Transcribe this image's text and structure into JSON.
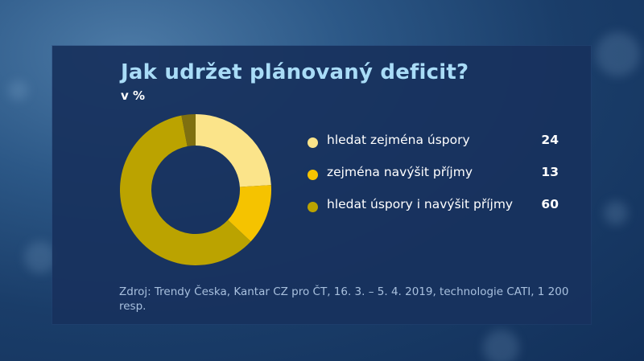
{
  "chart_data": {
    "type": "pie",
    "title": "Jak udržet plánovaný deficit?",
    "subtitle": "v %",
    "series": [
      {
        "name": "hledat zejména úspory",
        "value": 24,
        "value_label": "24",
        "color": "#fbe48a"
      },
      {
        "name": "zejména navýšit příjmy",
        "value": 13,
        "value_label": "13",
        "color": "#f5c300"
      },
      {
        "name": "hledat úspory i navýšit příjmy",
        "value": 60,
        "value_label": "60",
        "color": "#bba300"
      }
    ],
    "remainder_color": "#7f7010",
    "legend_position": "right"
  },
  "source": "Zdroj: Trendy Česka, Kantar CZ pro ČT,  16. 3. – 5. 4. 2019, technologie CATI, 1 200 resp."
}
